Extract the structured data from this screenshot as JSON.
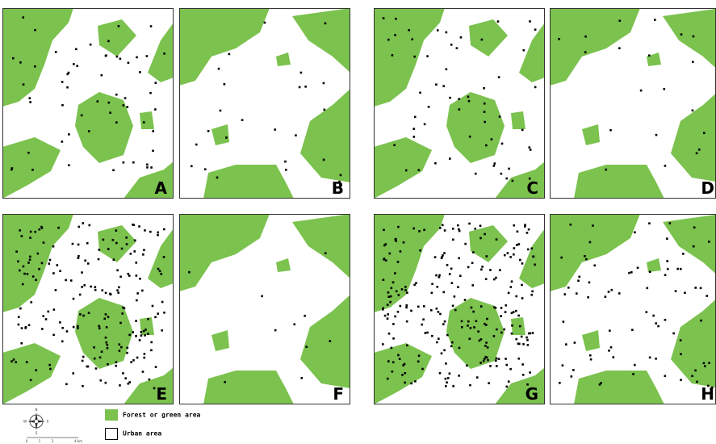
{
  "panels": [
    {
      "label": "A"
    },
    {
      "label": "B"
    },
    {
      "label": "C"
    },
    {
      "label": "D"
    },
    {
      "label": "E"
    },
    {
      "label": "F"
    },
    {
      "label": "G"
    },
    {
      "label": "H"
    }
  ],
  "legend": {
    "items": [
      {
        "label": "Forest or green area"
      },
      {
        "label": "Urban area"
      }
    ]
  },
  "compass": {
    "n": "N",
    "s": "S",
    "e": "E",
    "w": "W"
  },
  "scale": [
    "0",
    "1",
    "2",
    "4 km"
  ]
}
